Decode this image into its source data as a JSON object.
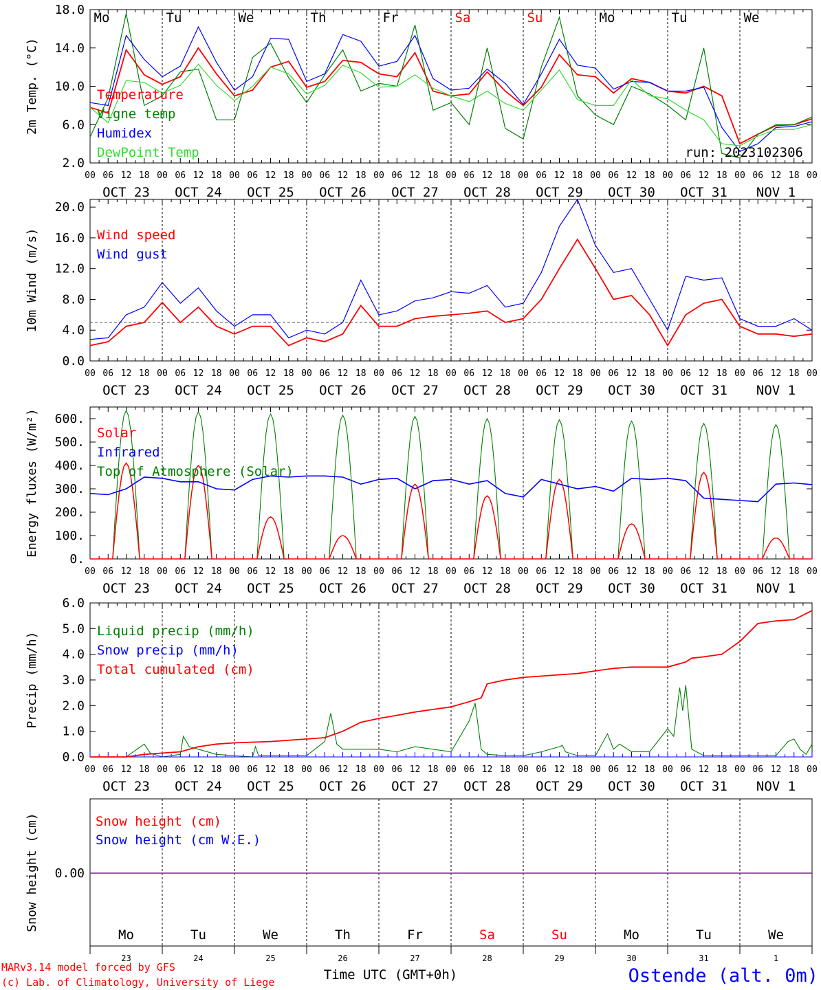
{
  "colors": {
    "red": "#ff0000",
    "green": "#008000",
    "blue": "#0000ff",
    "light_green": "#33dd33",
    "gray": "#555555",
    "purple": "#7a1fa0"
  },
  "days": [
    "Mo",
    "Tu",
    "We",
    "Th",
    "Fr",
    "Sa",
    "Su",
    "Mo",
    "Tu",
    "We"
  ],
  "day_nums": [
    "23",
    "24",
    "25",
    "26",
    "27",
    "28",
    "29",
    "30",
    "31",
    "1"
  ],
  "date_labels": [
    "OCT 23",
    "OCT 24",
    "OCT 25",
    "OCT 26",
    "OCT 27",
    "OCT 28",
    "OCT 29",
    "OCT 30",
    "OCT 31",
    "NOV  1"
  ],
  "hour_labels": [
    "00",
    "06",
    "12",
    "18"
  ],
  "weekend_days": [
    "Sa",
    "Su"
  ],
  "run_label": "run: 2023102306",
  "footer": {
    "model": "MARv3.14 model forced by GFS",
    "copyright": "(c) Lab. of Climatology, University of Liege",
    "xlabel": "Time UTC (GMT+0h)",
    "station": "Ostende (alt. 0m)"
  },
  "chart_data": [
    {
      "type": "line",
      "ylabel": "2m Temp. (°C)",
      "ylim": [
        2.0,
        18.0
      ],
      "yticks": [
        "2.0",
        "6.0",
        "10.0",
        "14.0",
        "18.0"
      ],
      "xlim_hours": [
        0,
        240
      ],
      "x_hours": [
        0,
        6,
        12,
        18,
        24,
        30,
        36,
        42,
        48,
        54,
        60,
        66,
        72,
        78,
        84,
        90,
        96,
        102,
        108,
        114,
        120,
        126,
        132,
        138,
        144,
        150,
        156,
        162,
        168,
        174,
        180,
        186,
        192,
        198,
        204,
        210,
        216,
        222,
        228,
        234,
        240
      ],
      "series": [
        {
          "name": "Temperature",
          "color": "#ff0000",
          "values": [
            7.8,
            7.2,
            13.8,
            11.2,
            10.2,
            11.0,
            14.0,
            11.3,
            9.0,
            9.6,
            12.0,
            12.6,
            9.9,
            10.5,
            12.7,
            12.5,
            11.3,
            11.0,
            13.5,
            9.5,
            9.0,
            9.2,
            11.5,
            9.5,
            8.0,
            9.9,
            13.3,
            11.2,
            11.0,
            9.3,
            10.8,
            10.4,
            9.5,
            9.3,
            10.0,
            9.0,
            4.0,
            5.0,
            5.9,
            6.0,
            6.6
          ]
        },
        {
          "name": "Vigne temp",
          "color": "#008000",
          "values": [
            4.7,
            8.8,
            17.6,
            8.0,
            9.0,
            11.5,
            11.8,
            6.5,
            6.5,
            13.0,
            14.5,
            10.9,
            8.3,
            11.2,
            13.8,
            9.5,
            10.3,
            10.0,
            16.4,
            7.5,
            8.3,
            6.0,
            14.0,
            5.6,
            4.5,
            12.0,
            17.2,
            9.0,
            7.0,
            6.0,
            10.0,
            9.2,
            8.0,
            6.5,
            14.0,
            3.0,
            2.5,
            5.0,
            6.0,
            6.0,
            6.8
          ]
        },
        {
          "name": "Humidex",
          "color": "#0000ff",
          "values": [
            8.3,
            8.0,
            15.3,
            12.8,
            11.0,
            12.1,
            16.2,
            12.5,
            9.6,
            11.0,
            15.0,
            14.9,
            10.5,
            11.3,
            15.4,
            14.7,
            12.1,
            12.6,
            15.3,
            10.8,
            9.6,
            9.8,
            11.8,
            10.3,
            8.1,
            11.3,
            14.9,
            12.2,
            11.9,
            9.7,
            10.5,
            10.4,
            9.5,
            9.5,
            9.9,
            5.7,
            3.2,
            4.0,
            5.7,
            5.8,
            6.3
          ]
        },
        {
          "name": "DewPoint Temp",
          "color": "#33dd33",
          "values": [
            7.8,
            6.2,
            10.6,
            10.4,
            9.3,
            10.1,
            12.3,
            10.1,
            8.5,
            10.0,
            12.0,
            11.3,
            9.2,
            10.1,
            12.2,
            11.4,
            9.9,
            10.0,
            11.2,
            9.8,
            9.0,
            8.4,
            9.5,
            8.2,
            7.5,
            9.6,
            11.7,
            8.6,
            8.0,
            8.0,
            10.7,
            9.0,
            8.7,
            7.5,
            6.5,
            4.0,
            3.8,
            4.8,
            5.5,
            5.5,
            6.0
          ]
        }
      ]
    },
    {
      "type": "line",
      "ylabel": "10m Wind (m/s)",
      "ylim": [
        0.0,
        21.0
      ],
      "yticks": [
        "0.0",
        "4.0",
        "8.0",
        "12.0",
        "16.0",
        "20.0"
      ],
      "reference_line": 5.0,
      "xlim_hours": [
        0,
        240
      ],
      "x_hours": [
        0,
        6,
        12,
        18,
        24,
        30,
        36,
        42,
        48,
        54,
        60,
        66,
        72,
        78,
        84,
        90,
        96,
        102,
        108,
        114,
        120,
        126,
        132,
        138,
        144,
        150,
        156,
        162,
        168,
        174,
        180,
        186,
        192,
        198,
        204,
        210,
        216,
        222,
        228,
        234,
        240
      ],
      "series": [
        {
          "name": "Wind speed",
          "color": "#ff0000",
          "values": [
            2.0,
            2.5,
            4.5,
            5.0,
            7.6,
            5.0,
            7.0,
            4.5,
            3.5,
            4.5,
            4.5,
            2.0,
            3.0,
            2.5,
            3.5,
            7.2,
            4.5,
            4.5,
            5.5,
            5.8,
            6.0,
            6.2,
            6.5,
            5.0,
            5.5,
            8.0,
            12.0,
            15.8,
            12.0,
            8.0,
            8.5,
            6.0,
            2.0,
            6.0,
            7.5,
            8.0,
            4.5,
            3.5,
            3.5,
            3.2,
            3.5
          ]
        },
        {
          "name": "Wind gust",
          "color": "#0000ff",
          "values": [
            2.8,
            3.0,
            6.0,
            7.0,
            10.2,
            7.5,
            9.5,
            6.5,
            4.5,
            6.0,
            6.0,
            3.0,
            4.0,
            3.5,
            5.0,
            10.5,
            6.0,
            6.5,
            7.8,
            8.2,
            9.0,
            8.8,
            9.8,
            7.0,
            7.5,
            11.5,
            17.5,
            21.0,
            15.0,
            11.5,
            12.0,
            8.0,
            4.0,
            11.0,
            10.5,
            10.8,
            5.5,
            4.5,
            4.5,
            5.5,
            4.0
          ]
        }
      ]
    },
    {
      "type": "line",
      "ylabel": "Energy fluxes (W/m²)",
      "ylim": [
        0,
        650
      ],
      "yticks": [
        "0.",
        "100.",
        "200.",
        "300.",
        "400.",
        "500.",
        "600."
      ],
      "xlim_hours": [
        0,
        240
      ],
      "daylight_hours": [
        7.5,
        16.5
      ],
      "series": [
        {
          "name": "Solar",
          "color": "#ff0000",
          "peaks": [
            410,
            400,
            180,
            100,
            320,
            270,
            340,
            150,
            370,
            90
          ]
        },
        {
          "name": "Infrared",
          "color": "#0000ff",
          "x_hours": [
            0,
            6,
            12,
            18,
            24,
            30,
            36,
            42,
            48,
            54,
            60,
            66,
            72,
            78,
            84,
            90,
            96,
            102,
            108,
            114,
            120,
            126,
            132,
            138,
            144,
            150,
            156,
            162,
            168,
            174,
            180,
            186,
            192,
            198,
            204,
            210,
            216,
            222,
            228,
            234,
            240
          ],
          "values": [
            280,
            275,
            300,
            350,
            345,
            330,
            330,
            300,
            295,
            340,
            355,
            350,
            355,
            355,
            350,
            320,
            340,
            345,
            300,
            335,
            340,
            320,
            335,
            280,
            265,
            340,
            320,
            300,
            310,
            290,
            345,
            340,
            345,
            335,
            260,
            255,
            250,
            245,
            320,
            325,
            318
          ]
        },
        {
          "name": "Top of Atmosphere (Solar)",
          "color": "#008000",
          "peaks": [
            635,
            630,
            620,
            615,
            610,
            600,
            595,
            590,
            580,
            575
          ]
        }
      ]
    },
    {
      "type": "line",
      "ylabel": "Precip (mm/h)",
      "ylim": [
        0.0,
        6.0
      ],
      "yticks": [
        "0.0",
        "1.0",
        "2.0",
        "3.0",
        "4.0",
        "5.0",
        "6.0"
      ],
      "xlim_hours": [
        0,
        240
      ],
      "series": [
        {
          "name": "Liquid precip (mm/h)",
          "color": "#008000",
          "x_hours": [
            0,
            12,
            18,
            20,
            24,
            30,
            31,
            33,
            36,
            42,
            54,
            55,
            56,
            60,
            72,
            78,
            80,
            82,
            84,
            90,
            96,
            102,
            108,
            114,
            120,
            126,
            128,
            130,
            132,
            138,
            144,
            150,
            156,
            157,
            158,
            162,
            168,
            172,
            174,
            176,
            180,
            186,
            192,
            194,
            196,
            197,
            198,
            200,
            204,
            210,
            228,
            232,
            234,
            236,
            238,
            240
          ],
          "values": [
            0,
            0,
            0.5,
            0.15,
            0,
            0.1,
            0.8,
            0.4,
            0.3,
            0.1,
            0.0,
            0.4,
            0.05,
            0.05,
            0.05,
            0.6,
            1.7,
            0.5,
            0.3,
            0.3,
            0.3,
            0.2,
            0.4,
            0.3,
            0.2,
            1.4,
            2.1,
            0.3,
            0.1,
            0.05,
            0.05,
            0.2,
            0.4,
            0.45,
            0.2,
            0.05,
            0.05,
            0.9,
            0.3,
            0.5,
            0.2,
            0.2,
            1.1,
            0.8,
            2.7,
            1.8,
            2.8,
            0.3,
            0.05,
            0.05,
            0.05,
            0.6,
            0.7,
            0.3,
            0.1,
            0.5
          ]
        },
        {
          "name": "Snow precip (mm/h)",
          "color": "#0000ff",
          "x_hours": [
            0,
            240
          ],
          "values": [
            0,
            0
          ]
        },
        {
          "name": "Total cumulated (cm)",
          "color": "#ff0000",
          "x_hours": [
            0,
            12,
            18,
            24,
            30,
            36,
            42,
            48,
            60,
            72,
            78,
            84,
            90,
            96,
            102,
            108,
            114,
            120,
            126,
            130,
            132,
            138,
            144,
            150,
            156,
            162,
            168,
            174,
            180,
            186,
            192,
            198,
            200,
            204,
            210,
            216,
            222,
            228,
            234,
            240
          ],
          "values": [
            0,
            0,
            0.1,
            0.15,
            0.2,
            0.4,
            0.5,
            0.55,
            0.6,
            0.7,
            0.75,
            1.0,
            1.35,
            1.5,
            1.62,
            1.75,
            1.85,
            1.95,
            2.15,
            2.3,
            2.85,
            3.0,
            3.1,
            3.15,
            3.2,
            3.25,
            3.35,
            3.45,
            3.5,
            3.5,
            3.5,
            3.7,
            3.85,
            3.9,
            4.0,
            4.5,
            5.2,
            5.3,
            5.35,
            5.7
          ]
        }
      ]
    },
    {
      "type": "line",
      "ylabel": "Snow height (cm)",
      "yticks": [
        "0.00"
      ],
      "xlim_hours": [
        0,
        240
      ],
      "series": [
        {
          "name": "Snow height (cm)",
          "color": "#ff0000",
          "x_hours": [
            0,
            240
          ],
          "values": [
            0,
            0
          ]
        },
        {
          "name": "Snow height (cm W.E.)",
          "color": "#0000ff",
          "x_hours": [
            0,
            240
          ],
          "values": [
            0,
            0
          ]
        }
      ]
    }
  ]
}
